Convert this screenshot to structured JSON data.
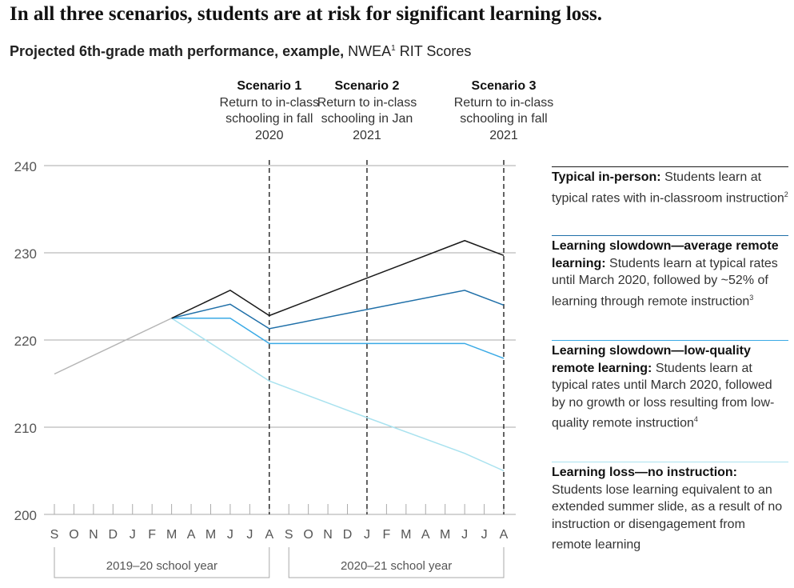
{
  "title": "In all three scenarios, students are at risk for significant learning loss.",
  "subtitle": {
    "bold": "Projected 6th-grade math performance, example,",
    "normal": "NWEA",
    "sup": "1",
    "rest": "RIT Scores"
  },
  "scenarios": [
    {
      "name": "Scenario 1",
      "desc": "Return to in-class schooling in fall 2020",
      "month_index": 11
    },
    {
      "name": "Scenario 2",
      "desc": "Return to in-class schooling in Jan 2021",
      "month_index": 16
    },
    {
      "name": "Scenario 3",
      "desc": "Return to in-class schooling in fall 2021",
      "month_index": 23
    }
  ],
  "legend": [
    {
      "bold": "Typical in-person:",
      "text": "Students learn at typical rates with in-classroom instruction",
      "sup": "2",
      "color": "#1a1a1a"
    },
    {
      "bold": "Learning slowdown—average remote learning:",
      "text": "Students learn at typical rates until March 2020, followed by ~52% of learning through remote instruction",
      "sup": "3",
      "color": "#1f6fa8"
    },
    {
      "bold": "Learning slowdown—low-quality remote learning:",
      "text": "Students learn at typical rates until March 2020, followed by no growth or loss resulting from low-quality remote instruction",
      "sup": "4",
      "color": "#3aaae6"
    },
    {
      "bold": "Learning loss—no instruction:",
      "text": "Students lose learning equivalent to an extended summer slide, as a result of no instruction or disengagement from remote learning",
      "sup": "",
      "color": "#a9e2ef"
    }
  ],
  "chart_data": {
    "type": "line",
    "title": "In all three scenarios, students are at risk for significant learning loss.",
    "ylabel": "NWEA RIT Scores",
    "ylim": [
      200,
      240
    ],
    "yticks": [
      200,
      210,
      220,
      230,
      240
    ],
    "grid": true,
    "legend_placement": "right",
    "categories": [
      "S",
      "O",
      "N",
      "D",
      "J",
      "F",
      "M",
      "A",
      "M",
      "J",
      "J",
      "A",
      "S",
      "O",
      "N",
      "D",
      "J",
      "F",
      "M",
      "A",
      "M",
      "J",
      "J",
      "A"
    ],
    "school_years": [
      {
        "label": "2019–20 school year",
        "from": 0,
        "to": 11
      },
      {
        "label": "2020–21 school year",
        "from": 12,
        "to": 23
      }
    ],
    "baseline": {
      "color": "#b5b5b5",
      "points": [
        [
          0,
          216.1
        ],
        [
          6,
          222.5
        ]
      ]
    },
    "series": [
      {
        "name": "Typical in-person",
        "color": "#1a1a1a",
        "points": [
          [
            6,
            222.5
          ],
          [
            9,
            225.7
          ],
          [
            11,
            222.8
          ],
          [
            16,
            227.1
          ],
          [
            21,
            231.4
          ],
          [
            23,
            229.7
          ]
        ]
      },
      {
        "name": "Learning slowdown—average remote learning",
        "color": "#1f6fa8",
        "points": [
          [
            6,
            222.5
          ],
          [
            9,
            224.1
          ],
          [
            11,
            221.3
          ],
          [
            21,
            225.7
          ],
          [
            23,
            224.0
          ]
        ]
      },
      {
        "name": "Learning slowdown—low-quality remote learning",
        "color": "#3aaae6",
        "points": [
          [
            6,
            222.5
          ],
          [
            9,
            222.5
          ],
          [
            11,
            219.6
          ],
          [
            21,
            219.6
          ],
          [
            23,
            217.9
          ]
        ]
      },
      {
        "name": "Learning loss—no instruction",
        "color": "#a9e2ef",
        "points": [
          [
            6,
            222.5
          ],
          [
            11,
            215.3
          ],
          [
            16,
            211.1
          ],
          [
            21,
            207.0
          ],
          [
            23,
            205.0
          ]
        ]
      }
    ]
  }
}
